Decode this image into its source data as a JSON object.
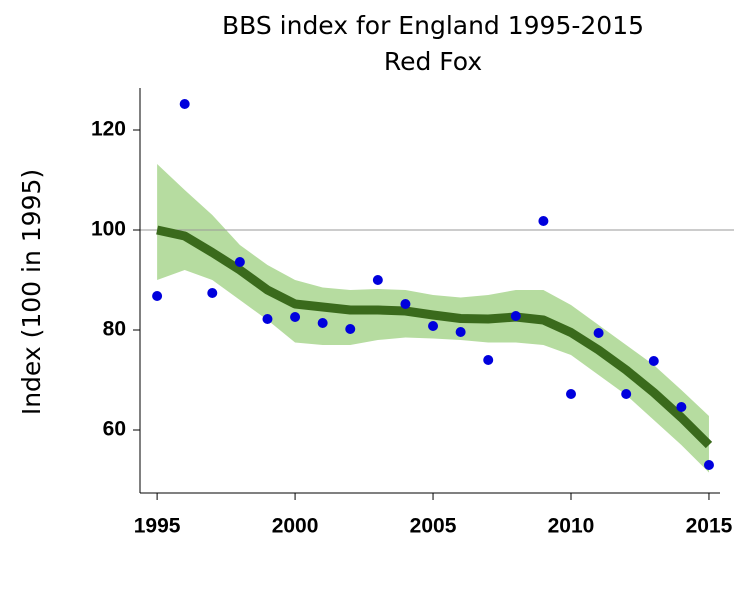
{
  "chart_data": {
    "type": "line",
    "title": "BBS index for England 1995-2015",
    "subtitle": "Red Fox",
    "y_label": "Index (100 in 1995)",
    "x": [
      1995,
      1996,
      1997,
      1998,
      1999,
      2000,
      2001,
      2002,
      2003,
      2004,
      2005,
      2006,
      2007,
      2008,
      2009,
      2010,
      2011,
      2012,
      2013,
      2014,
      2015
    ],
    "xlim": [
      1994.38,
      2015.4
    ],
    "xticks": [
      1995,
      2000,
      2005,
      2010,
      2015
    ],
    "ylim": [
      47.4,
      128.4
    ],
    "yticks": [
      60,
      80,
      100,
      120
    ],
    "reference_line": 100,
    "points": {
      "color": "#0000dd",
      "values": [
        86.8,
        125.2,
        87.4,
        93.6,
        82.2,
        82.6,
        81.4,
        80.2,
        90,
        85.2,
        80.8,
        79.6,
        74,
        82.8,
        101.8,
        67.2,
        79.4,
        67.2,
        73.8,
        64.6,
        53
      ]
    },
    "trend": {
      "color": "#3a6a1c",
      "values": [
        100,
        98.8,
        95.5,
        92,
        88,
        85.2,
        84.6,
        84,
        84,
        83.8,
        83,
        82.3,
        82.2,
        82.6,
        82,
        79.5,
        76,
        72,
        67.5,
        62.5,
        57
      ]
    },
    "band": {
      "color": "#b6dca0",
      "upper": [
        113.2,
        108,
        103,
        97,
        93,
        90,
        88.5,
        88,
        88.2,
        88,
        87,
        86.5,
        87,
        88,
        88,
        85,
        81,
        77,
        73,
        68,
        62.8
      ],
      "lower": [
        90,
        92,
        90,
        86,
        82,
        77.5,
        77,
        77,
        78,
        78.5,
        78.3,
        78,
        77.5,
        77.5,
        77,
        75,
        71,
        67,
        62,
        57,
        51.5
      ]
    }
  }
}
